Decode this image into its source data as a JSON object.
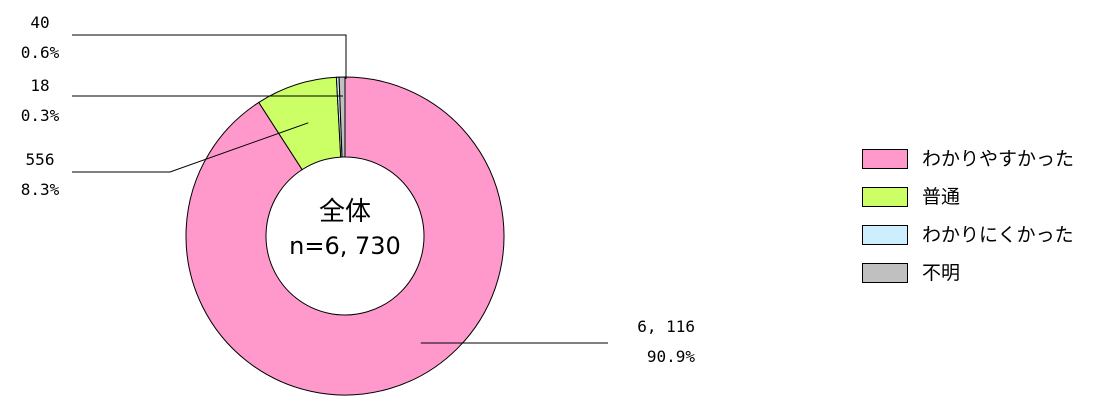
{
  "chart_data": {
    "type": "pie",
    "center_label": {
      "title": "全体",
      "subtitle": "n=6, 730"
    },
    "series": [
      {
        "name": "わかりやすかった",
        "count_label": "6, 116",
        "percent_label": "90.9%",
        "value": 6116,
        "color": "#ff99cc"
      },
      {
        "name": "普通",
        "count_label": "556",
        "percent_label": "8.3%",
        "value": 556,
        "color": "#ccff66"
      },
      {
        "name": "わかりにくかった",
        "count_label": "18",
        "percent_label": "0.3%",
        "value": 18,
        "color": "#cceeff"
      },
      {
        "name": "不明",
        "count_label": "40",
        "percent_label": "0.6%",
        "value": 40,
        "color": "#c0c0c0"
      }
    ],
    "legend": {
      "position": "right"
    }
  }
}
